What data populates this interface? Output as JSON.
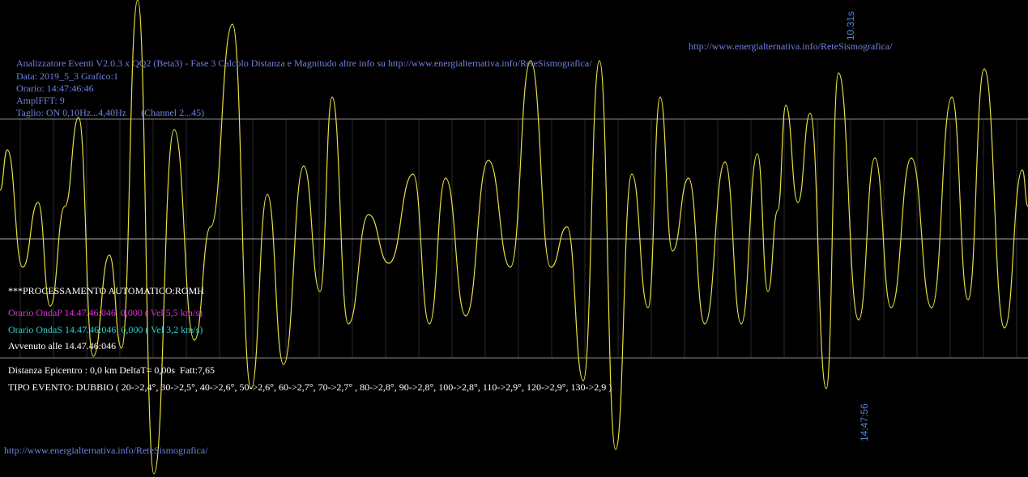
{
  "header": {
    "lines": [
      "Analizzatore Eventi V2.0.3 x QQ2 (Beta3) - Fase 3 Calcolo Distanza e Magnitudo altre info su http://www.energialternativa.info/ReteSismografica/",
      "Data: 2019_5_3 Grafico:1",
      "Orario: 14:47:46:46",
      "AmplFFT: 9",
      "Taglio: ON 0,10Hz...4,40Hz      (Channel 2...45)"
    ]
  },
  "url_top": "http://www.energialternativa.info/ReteSismografica/",
  "url_bottom": "http://www.energialternativa.info/ReteSismografica/",
  "time_label_top": "10.31s",
  "time_label_bottom": "14:47:56",
  "processing": {
    "title": "***PROCESSAMENTO AUTOMATICO:ROMH",
    "onda_p": "Orario OndaP 14.47.46:046  0,000 ( Vel 5,5 km/s)",
    "onda_s": "Orario OndaS 14.47.46:046  0,000 ( Vel 3,2 km/s)",
    "avvenuto": "Avvenuto alle 14.47.46:046",
    "distanza": "Distanza Epicentro : 0,0 km DeltaT= 0,00s  Fatt:7,65",
    "tipo": "TIPO EVENTO: DUBBIO ( 20->2,4°, 30->2,5°, 40->2,6°, 50->2,6°, 60->2,7°, 70->2,7° , 80->2,8°, 90->2,8°, 100->2,8°, 110->2,9°, 120->2,9°, 130->2,9 )"
  }
}
